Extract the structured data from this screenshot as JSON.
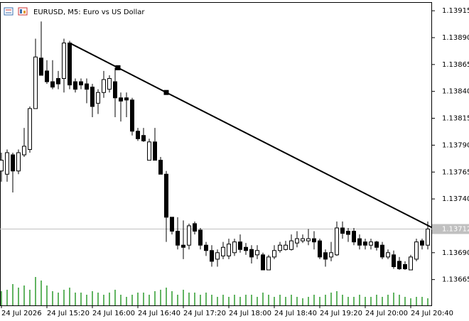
{
  "chart_data": {
    "type": "candlestick",
    "title": "EURUSD, M5:  Euro vs US Dollar",
    "categories": [
      "24 Jul 2026",
      null,
      null,
      null,
      null,
      null,
      null,
      null,
      "24 Jul 15:20",
      null,
      null,
      null,
      null,
      null,
      null,
      null,
      "24 Jul 16:00",
      null,
      null,
      null,
      null,
      null,
      null,
      null,
      "24 Jul 16:40",
      null,
      null,
      null,
      null,
      null,
      null,
      null,
      "24 Jul 17:20",
      null,
      null,
      null,
      null,
      null,
      null,
      null,
      "24 Jul 18:00",
      null,
      null,
      null,
      null,
      null,
      null,
      null,
      "24 Jul 18:40",
      null,
      null,
      null,
      null,
      null,
      null,
      null,
      "24 Jul 19:20",
      null,
      null,
      null,
      null,
      null,
      null,
      null,
      "24 Jul 20:00",
      null,
      null,
      null,
      null,
      null,
      null,
      null,
      "24 Jul 20:40",
      null,
      null,
      null
    ],
    "open": [
      1.13766,
      1.13763,
      1.13781,
      1.13766,
      1.13781,
      1.13786,
      1.13824,
      1.13871,
      1.13859,
      1.13849,
      1.13852,
      1.13852,
      1.13885,
      1.13849,
      1.13849,
      1.13847,
      1.13844,
      1.13829,
      1.13839,
      1.13842,
      1.13849,
      1.13834,
      1.13834,
      1.13832,
      1.13803,
      1.13799,
      1.13776,
      1.13793,
      1.13776,
      1.13763,
      1.13723,
      1.1371,
      1.13697,
      1.13697,
      1.13717,
      1.13711,
      1.13697,
      1.13692,
      1.13684,
      1.13687,
      1.13687,
      1.1369,
      1.137,
      1.13695,
      1.13693,
      1.13688,
      1.13688,
      1.13674,
      1.13686,
      1.13692,
      1.13693,
      1.13693,
      1.13699,
      1.13701,
      1.13701,
      1.13703,
      1.13701,
      1.1369,
      1.13686,
      1.13688,
      1.13713,
      1.1371,
      1.1371,
      1.13703,
      1.137,
      1.13697,
      1.137,
      1.13697,
      1.13686,
      1.13688,
      1.13682,
      1.13679,
      1.13674,
      1.13684,
      1.13701,
      1.13697
    ],
    "high": [
      1.13783,
      1.13786,
      1.13783,
      1.13786,
      1.13806,
      1.13826,
      1.13889,
      1.13905,
      1.13869,
      1.13869,
      1.13859,
      1.13889,
      1.13887,
      1.13852,
      1.13852,
      1.13852,
      1.13847,
      1.13842,
      1.13859,
      1.13855,
      1.13862,
      1.13839,
      1.13839,
      1.13834,
      1.13806,
      1.13806,
      1.13796,
      1.13806,
      1.13779,
      1.13766,
      1.13723,
      1.13723,
      1.1372,
      1.13717,
      1.13719,
      1.13713,
      1.137,
      1.13697,
      1.13693,
      1.137,
      1.13703,
      1.13703,
      1.13707,
      1.13699,
      1.13697,
      1.13697,
      1.1369,
      1.13688,
      1.13697,
      1.137,
      1.13701,
      1.13707,
      1.1371,
      1.13707,
      1.13712,
      1.1371,
      1.13703,
      1.13693,
      1.137,
      1.13719,
      1.13719,
      1.13713,
      1.13713,
      1.13707,
      1.13703,
      1.13703,
      1.13701,
      1.137,
      1.13693,
      1.13692,
      1.13686,
      1.13682,
      1.13688,
      1.13703,
      1.13703,
      1.13719
    ],
    "low": [
      1.13756,
      1.13756,
      1.13746,
      1.13763,
      1.13779,
      1.13783,
      1.13824,
      1.13855,
      1.13847,
      1.13842,
      1.13842,
      1.13839,
      1.13842,
      1.13839,
      1.13842,
      1.13829,
      1.13816,
      1.13819,
      1.13834,
      1.13839,
      1.13816,
      1.13812,
      1.13816,
      1.13799,
      1.13794,
      1.13793,
      1.13776,
      1.13776,
      1.13763,
      1.137,
      1.13707,
      1.13693,
      1.13684,
      1.13693,
      1.13707,
      1.13693,
      1.13687,
      1.13677,
      1.13677,
      1.13684,
      1.13684,
      1.13687,
      1.1369,
      1.13688,
      1.1368,
      1.13684,
      1.13674,
      1.13674,
      1.13684,
      1.1369,
      1.13692,
      1.13692,
      1.13695,
      1.13699,
      1.13697,
      1.13693,
      1.13684,
      1.13677,
      1.13682,
      1.13687,
      1.13703,
      1.137,
      1.13697,
      1.13693,
      1.13693,
      1.13693,
      1.13692,
      1.13684,
      1.13684,
      1.13675,
      1.13674,
      1.13674,
      1.13674,
      1.13682,
      1.13693,
      1.13693
    ],
    "close": [
      1.13776,
      1.13783,
      1.13766,
      1.13783,
      1.13789,
      1.13824,
      1.13872,
      1.13855,
      1.13849,
      1.13844,
      1.13847,
      1.13885,
      1.13846,
      1.13842,
      1.13846,
      1.13842,
      1.13826,
      1.13839,
      1.13851,
      1.13852,
      1.13834,
      1.13831,
      1.13832,
      1.13803,
      1.13796,
      1.13794,
      1.13793,
      1.13776,
      1.13763,
      1.13723,
      1.1371,
      1.13697,
      1.13695,
      1.13715,
      1.1371,
      1.13697,
      1.13692,
      1.13682,
      1.1369,
      1.13695,
      1.13698,
      1.137,
      1.13693,
      1.13692,
      1.13686,
      1.13692,
      1.13674,
      1.13686,
      1.13692,
      1.13697,
      1.13697,
      1.13701,
      1.13703,
      1.13703,
      1.13703,
      1.137,
      1.13686,
      1.13684,
      1.1369,
      1.13713,
      1.13708,
      1.13707,
      1.137,
      1.13697,
      1.13697,
      1.137,
      1.13695,
      1.13686,
      1.1369,
      1.13677,
      1.13675,
      1.13675,
      1.13686,
      1.137,
      1.13697,
      1.13712
    ],
    "volumes": [
      20,
      22,
      30,
      25,
      28,
      22,
      40,
      35,
      28,
      20,
      18,
      22,
      25,
      18,
      18,
      15,
      20,
      18,
      15,
      18,
      22,
      15,
      12,
      15,
      18,
      18,
      15,
      20,
      22,
      25,
      20,
      15,
      22,
      18,
      18,
      15,
      18,
      15,
      12,
      15,
      12,
      15,
      12,
      15,
      15,
      12,
      18,
      15,
      12,
      15,
      12,
      15,
      12,
      10,
      12,
      15,
      12,
      15,
      18,
      20,
      15,
      12,
      12,
      15,
      12,
      12,
      15,
      12,
      15,
      18,
      15,
      12,
      10,
      12,
      12,
      10
    ],
    "up_color": "#ffffff",
    "down_color": "#000000",
    "volume_color": "#2e9a2e",
    "trendline": {
      "x": [
        12,
        20.5,
        29,
        76.25
      ],
      "y": [
        1.13885,
        1.13862,
        1.13839,
        1.13712
      ]
    },
    "last_price": 1.13712,
    "ylim": [
      1.13641,
      1.13925
    ],
    "yticks": [
      1.13915,
      {
        "value": 1.1389,
        "label": "1.13890"
      },
      1.13865,
      {
        "value": 1.1384,
        "label": "1.13840"
      },
      1.13815,
      {
        "value": 1.1379,
        "label": "1.13790"
      },
      1.13765,
      {
        "value": 1.1374,
        "label": "1.13740"
      },
      {
        "value": 1.1369,
        "label": "1.13690"
      },
      1.13665
    ]
  }
}
